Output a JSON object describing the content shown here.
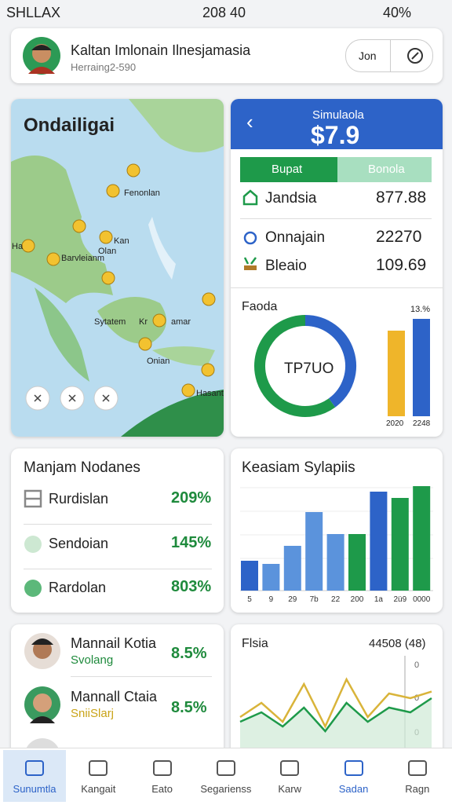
{
  "status": {
    "carrier": "SHLLAX",
    "time": "208 40",
    "battery": "40%"
  },
  "header": {
    "name": "Kaltan Imlonain Ilnesjamasia",
    "subtitle": "Herraing2-590",
    "button": "Jon"
  },
  "map": {
    "title": "Ondailigai",
    "labels": [
      "Fenonlan",
      "Ha",
      "Kan",
      "Olan",
      "Barvleianm",
      "Sytatem",
      "Kr",
      "amar",
      "Onian",
      "Hasanth"
    ]
  },
  "summary": {
    "title": "Simulaola",
    "amount": "$7.9",
    "tabs": [
      "Bupat",
      "Bonola"
    ],
    "rows": [
      {
        "label": "Jandsia",
        "value": "877.88"
      },
      {
        "label": "Onnajain",
        "value": "22270"
      },
      {
        "label": "Bleaio",
        "value": "109.69"
      }
    ],
    "chart_title": "Faoda",
    "donut_center": "TP7UO",
    "donut_values": [
      40,
      60
    ],
    "donut_colors": [
      "#2d63c8",
      "#1e9a4a"
    ],
    "bar_values": [
      109,
      124
    ],
    "bar_colors": [
      "#efb52a",
      "#2d63c8"
    ],
    "bar_top_label": "13.%",
    "bar_labels": [
      "2020",
      "2248"
    ]
  },
  "nodes": {
    "title": "Manjam Nodanes",
    "rows": [
      {
        "label": "Rurdislan",
        "value": "209%"
      },
      {
        "label": "Sendoian",
        "value": "145%"
      },
      {
        "label": "Rardolan",
        "value": "803%"
      }
    ]
  },
  "bars": {
    "title": "Keasiam Sylapiis",
    "categories": [
      "5",
      "9",
      "29",
      "7b",
      "22",
      "200",
      "1a",
      "2ü9",
      "0000"
    ],
    "values": [
      38,
      34,
      57,
      100,
      72,
      72,
      126,
      118,
      133
    ],
    "colors": [
      "#2d63c8",
      "#5b93dc",
      "#5b93dc",
      "#5b93dc",
      "#5b93dc",
      "#1e9a4a",
      "#2d63c8",
      "#1e9a4a",
      "#1e9a4a"
    ]
  },
  "people": {
    "rows": [
      {
        "name": "Mannail Kotia",
        "role": "Svolang",
        "value": "8.5%"
      },
      {
        "name": "Mannall Ctaia",
        "role": "SniiSlarj",
        "value": "8.5%"
      }
    ]
  },
  "trend": {
    "title": "Flsia",
    "value": "44508 (48)",
    "ylabels": [
      "0",
      "0",
      "0"
    ],
    "series": [
      {
        "color": "#1e9a4a",
        "values": [
          30,
          40,
          25,
          45,
          20,
          50,
          30,
          45,
          40,
          55
        ]
      },
      {
        "color": "#d9b43a",
        "values": [
          35,
          50,
          30,
          70,
          25,
          75,
          35,
          60,
          55,
          62
        ]
      }
    ]
  },
  "nav": [
    "Sunumtla",
    "Kangait",
    "Eato",
    "Segarienss",
    "Karw",
    "Sadan",
    "Ragn"
  ]
}
